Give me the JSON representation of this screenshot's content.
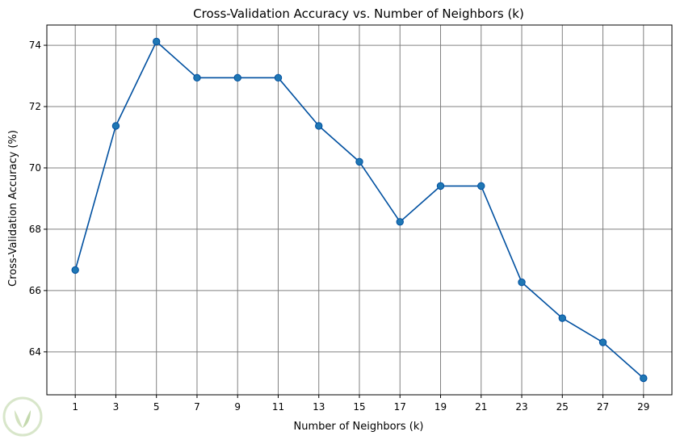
{
  "chart_data": {
    "type": "line",
    "title": "Cross-Validation Accuracy vs. Number of Neighbors (k)",
    "xlabel": "Number of Neighbors (k)",
    "ylabel": "Cross-Validation Accuracy (%)",
    "x": [
      1,
      3,
      5,
      7,
      9,
      11,
      13,
      15,
      17,
      19,
      21,
      23,
      25,
      27,
      29
    ],
    "y": [
      66.67,
      71.37,
      74.12,
      72.94,
      72.94,
      72.94,
      71.37,
      70.2,
      68.24,
      69.41,
      69.41,
      66.27,
      65.1,
      64.31,
      63.14
    ],
    "xticks": [
      1,
      3,
      5,
      7,
      9,
      11,
      13,
      15,
      17,
      19,
      21,
      23,
      25,
      27,
      29
    ],
    "yticks": [
      64,
      66,
      68,
      70,
      72,
      74
    ],
    "xlim": [
      -0.4,
      30.4
    ],
    "ylim": [
      62.6,
      74.66
    ],
    "grid": true,
    "marker": "circle",
    "line_color": "#0050a0",
    "marker_color": "#1f77b4",
    "grid_color": "#808080"
  },
  "watermark": {
    "icon": "leaf-logo-icon"
  }
}
